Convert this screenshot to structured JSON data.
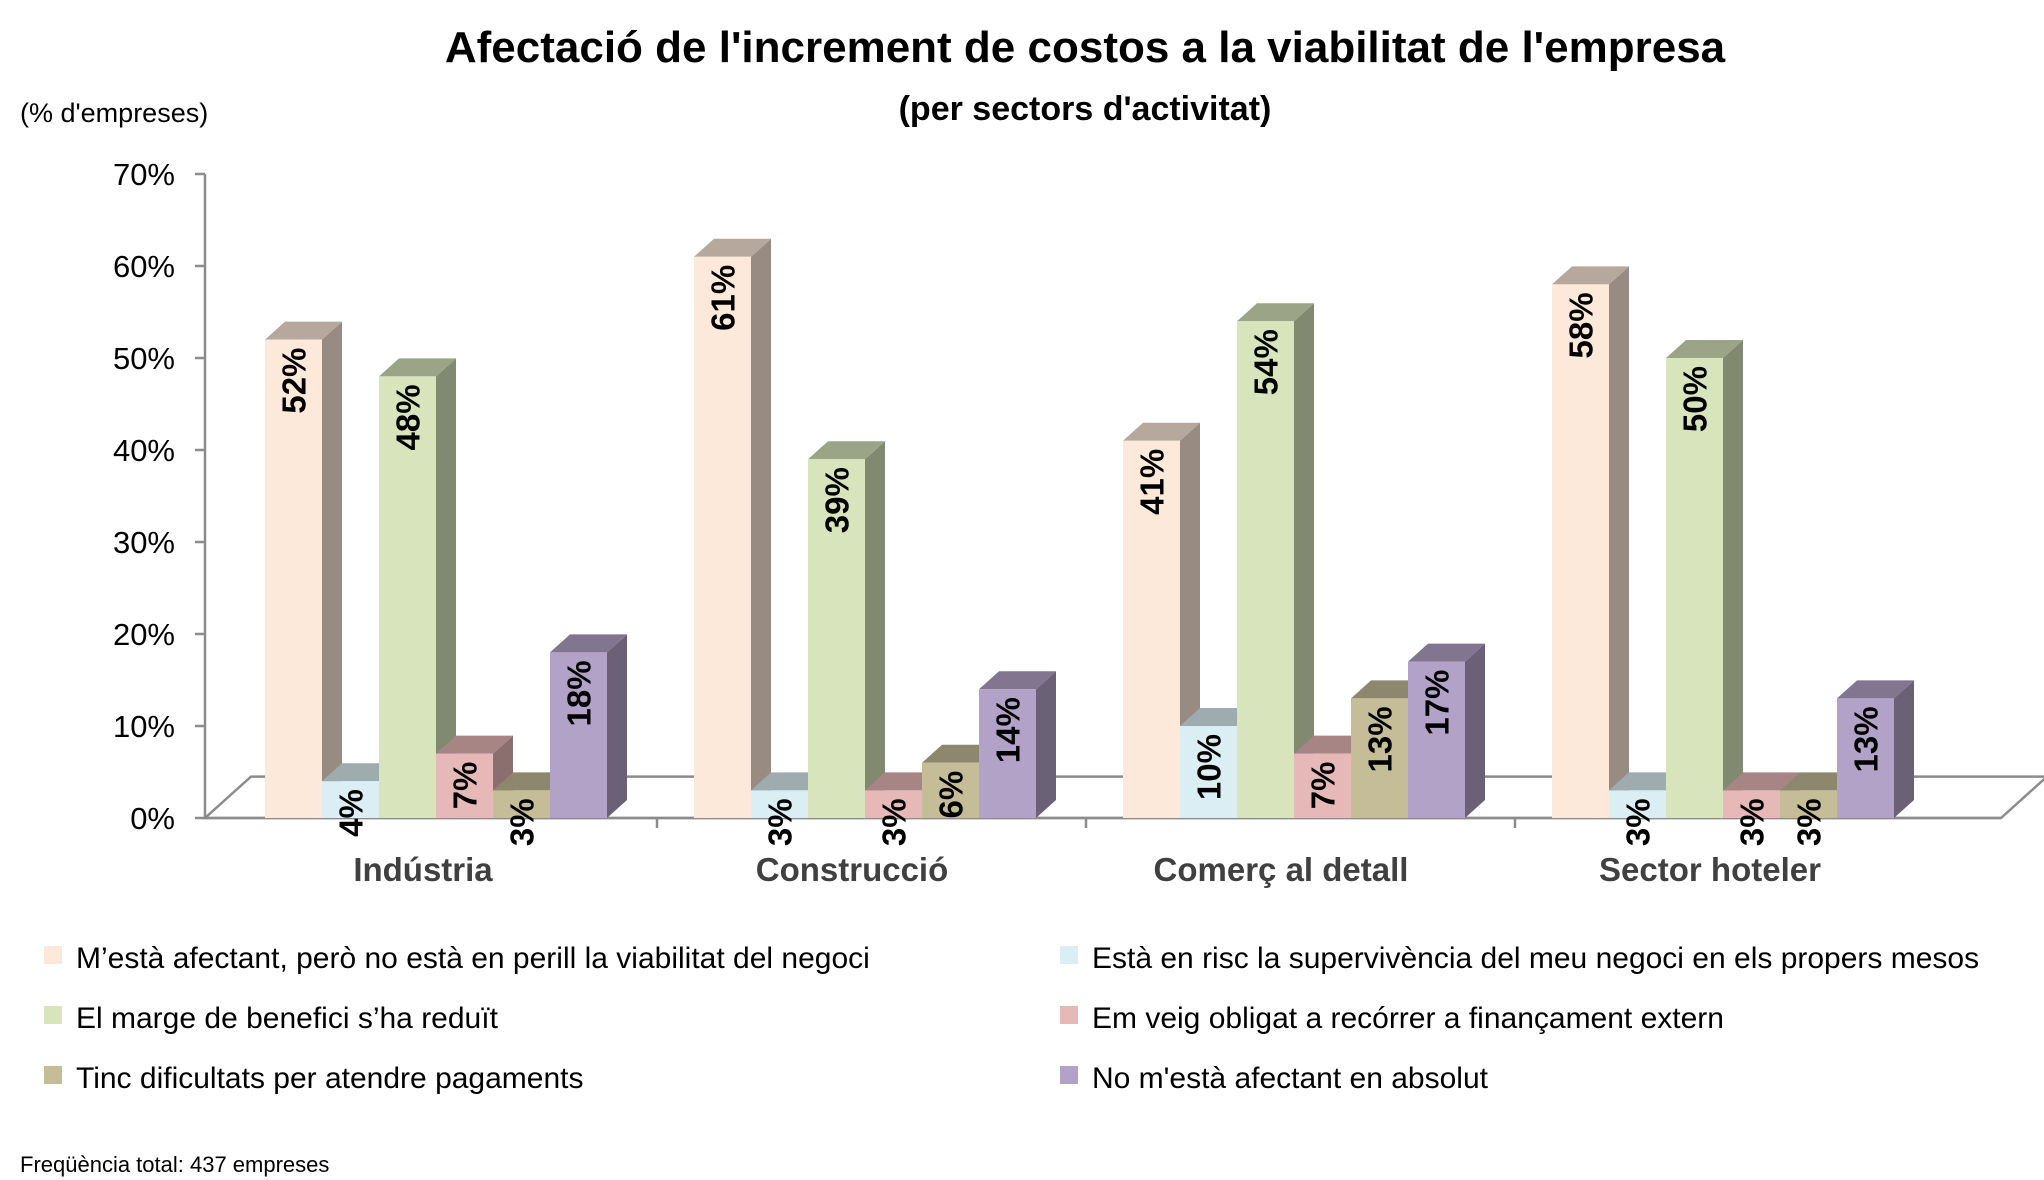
{
  "chart_data": {
    "type": "bar",
    "title": "Afectació de l'increment de costos a la viabilitat de l'empresa",
    "subtitle": "(per sectors d'activitat)",
    "unit_label": "(% d'empreses)",
    "categories": [
      "Indústria",
      "Construcció",
      "Comerç al detall",
      "Sector hoteler"
    ],
    "ylim": [
      0,
      70
    ],
    "y_ticks": [
      "0%",
      "10%",
      "20%",
      "30%",
      "40%",
      "50%",
      "60%",
      "70%"
    ],
    "legend_position": "bottom",
    "series": [
      {
        "name": "M’està afectant, però no està en perill la viabilitat del negoci",
        "color": "#fde9d9",
        "values": [
          52,
          61,
          41,
          58
        ],
        "labels": [
          "52%",
          "61%",
          "41%",
          "58%"
        ]
      },
      {
        "name": "Està en risc la supervivència del meu negoci en els propers mesos",
        "color": "#dbeef3",
        "values": [
          4,
          3,
          10,
          3
        ],
        "labels": [
          "4%",
          "3%",
          "10%",
          "3%"
        ]
      },
      {
        "name": "El marge de benefici s’ha reduït",
        "color": "#d7e4bc",
        "values": [
          48,
          39,
          54,
          50
        ],
        "labels": [
          "48%",
          "39%",
          "54%",
          "50%"
        ]
      },
      {
        "name": "Em veig obligat a recórrer a finançament extern",
        "color": "#e6b9b8",
        "values": [
          7,
          3,
          7,
          3
        ],
        "labels": [
          "7%",
          "3%",
          "7%",
          "3%"
        ]
      },
      {
        "name": "Tinc dificultats per atendre pagaments",
        "color": "#c4bd97",
        "values": [
          3,
          6,
          13,
          3
        ],
        "labels": [
          "3%",
          "6%",
          "13%",
          "3%"
        ]
      },
      {
        "name": "No m'està afectant en absolut",
        "color": "#b3a2c7",
        "values": [
          18,
          14,
          17,
          13
        ],
        "labels": [
          "18%",
          "14%",
          "17%",
          "13%"
        ]
      }
    ],
    "footnote": "Freqüència total: 437 empreses"
  }
}
